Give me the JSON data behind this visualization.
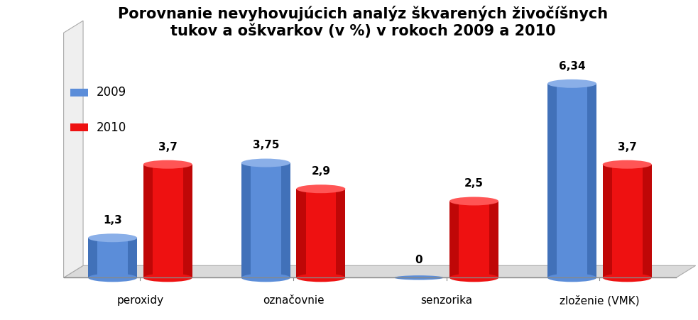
{
  "title": "Porovnanie nevyhovujúcich analýz škvarených živočíšnych\ntukov a oškvarkov (v %) v rokoch 2009 a 2010",
  "categories": [
    "peroxidy",
    "označovnie",
    "senzorika",
    "zloženie (VMK)"
  ],
  "values_2009": [
    1.3,
    3.75,
    0,
    6.34
  ],
  "values_2010": [
    3.7,
    2.9,
    2.5,
    3.7
  ],
  "c2009_face": "#5B8DD9",
  "c2009_dark": "#2C5AA0",
  "c2009_light": "#8AAFE8",
  "c2010_face": "#EE1111",
  "c2010_dark": "#990000",
  "c2010_light": "#FF5555",
  "background": "#FFFFFF",
  "legend_2009": "2009",
  "legend_2010": "2010",
  "title_fontsize": 15,
  "ylim_max": 8.0,
  "floor_color": "#DADADA",
  "floor_edge": "#AAAAAA"
}
